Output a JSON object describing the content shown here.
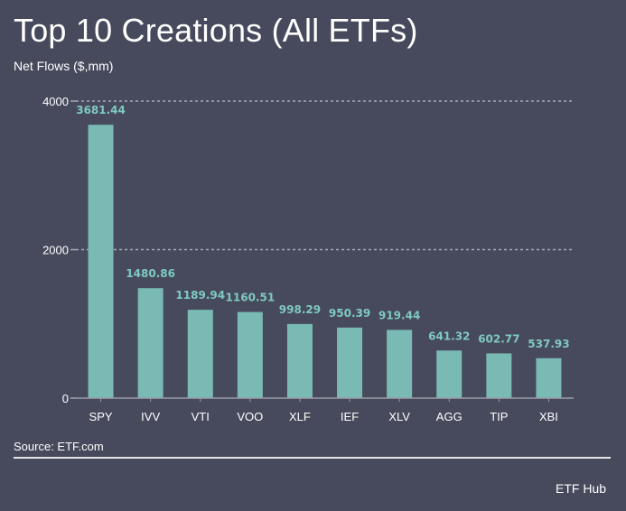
{
  "header": {
    "title": "Top 10 Creations (All ETFs)",
    "subtitle": "Net Flows ($,mm)"
  },
  "footer": {
    "source": "Source: ETF.com",
    "brand": "ETF Hub"
  },
  "colors": {
    "background": "#474a5c",
    "bar": "#7abab5",
    "label": "#7fc9c2",
    "gridline": "#a7a9b6",
    "axis": "#9a9ca8",
    "text": "#ffffff"
  },
  "chart_data": {
    "type": "bar",
    "title": "Top 10 Creations (All ETFs)",
    "ylabel": "Net Flows ($,mm)",
    "xlabel": "",
    "categories": [
      "SPY",
      "IVV",
      "VTI",
      "VOO",
      "XLF",
      "IEF",
      "XLV",
      "AGG",
      "TIP",
      "XBI"
    ],
    "values": [
      3681.44,
      1480.86,
      1189.94,
      1160.51,
      998.29,
      950.39,
      919.44,
      641.32,
      602.77,
      537.93
    ],
    "value_labels": [
      "3681.44",
      "1480.86",
      "1189.94",
      "1160.51",
      "998.29",
      "950.39",
      "919.44",
      "641.32",
      "602.77",
      "537.93"
    ],
    "ylim": [
      0,
      4000
    ],
    "yticks": [
      0,
      2000,
      4000
    ],
    "ytick_labels": [
      "0",
      "2000",
      "4000"
    ],
    "grid": "horizontal dashed",
    "legend": "none",
    "source": "Source: ETF.com"
  }
}
